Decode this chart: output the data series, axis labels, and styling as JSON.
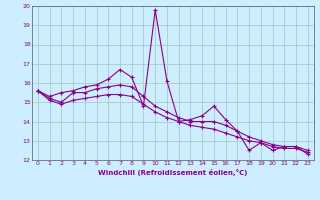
{
  "xlabel": "Windchill (Refroidissement éolien,°C)",
  "xlim": [
    -0.5,
    23.5
  ],
  "ylim": [
    12,
    20
  ],
  "yticks": [
    12,
    13,
    14,
    15,
    16,
    17,
    18,
    19,
    20
  ],
  "xticks": [
    0,
    1,
    2,
    3,
    4,
    5,
    6,
    7,
    8,
    9,
    10,
    11,
    12,
    13,
    14,
    15,
    16,
    17,
    18,
    19,
    20,
    21,
    22,
    23
  ],
  "bg_color": "#cceeff",
  "grid_color": "#aacccc",
  "line_color": "#880088",
  "spine_color": "#555555",
  "series": [
    [
      15.6,
      15.3,
      15.5,
      15.6,
      15.8,
      15.9,
      16.2,
      16.7,
      16.3,
      14.8,
      19.8,
      16.1,
      14.0,
      14.1,
      14.3,
      14.8,
      14.1,
      13.5,
      12.5,
      12.9,
      12.5,
      12.7,
      12.7,
      12.3
    ],
    [
      15.6,
      15.2,
      15.0,
      15.5,
      15.5,
      15.7,
      15.8,
      15.9,
      15.8,
      15.3,
      14.8,
      14.5,
      14.2,
      14.0,
      14.0,
      14.0,
      13.8,
      13.5,
      13.2,
      13.0,
      12.8,
      12.7,
      12.7,
      12.5
    ],
    [
      15.6,
      15.1,
      14.9,
      15.1,
      15.2,
      15.3,
      15.4,
      15.4,
      15.3,
      14.9,
      14.5,
      14.2,
      14.0,
      13.8,
      13.7,
      13.6,
      13.4,
      13.2,
      13.0,
      12.9,
      12.7,
      12.6,
      12.6,
      12.4
    ]
  ]
}
